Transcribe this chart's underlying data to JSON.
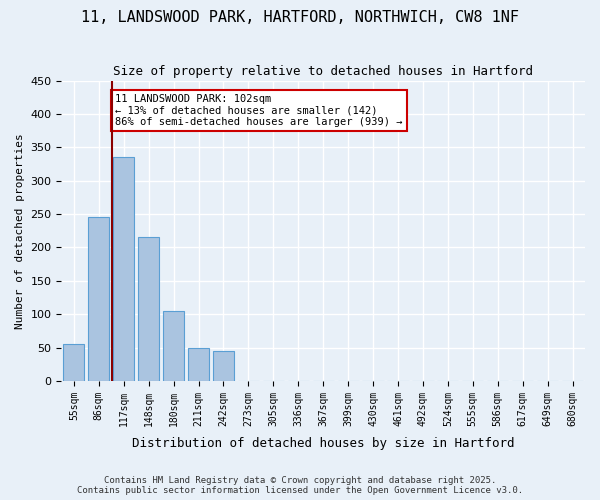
{
  "title": "11, LANDSWOOD PARK, HARTFORD, NORTHWICH, CW8 1NF",
  "subtitle": "Size of property relative to detached houses in Hartford",
  "xlabel": "Distribution of detached houses by size in Hartford",
  "ylabel": "Number of detached properties",
  "categories": [
    "55sqm",
    "86sqm",
    "117sqm",
    "148sqm",
    "180sqm",
    "211sqm",
    "242sqm",
    "273sqm",
    "305sqm",
    "336sqm",
    "367sqm",
    "399sqm",
    "430sqm",
    "461sqm",
    "492sqm",
    "524sqm",
    "555sqm",
    "586sqm",
    "617sqm",
    "649sqm",
    "680sqm"
  ],
  "values": [
    55,
    245,
    335,
    215,
    105,
    50,
    45,
    0,
    0,
    0,
    0,
    0,
    0,
    0,
    0,
    0,
    0,
    0,
    0,
    0,
    0
  ],
  "bar_color": "#aac4e0",
  "bar_edge_color": "#5a9fd4",
  "ylim": [
    0,
    450
  ],
  "yticks": [
    0,
    50,
    100,
    150,
    200,
    250,
    300,
    350,
    400,
    450
  ],
  "vline_x_index": 0.72,
  "vline_color": "#8b0000",
  "annotation_text": "11 LANDSWOOD PARK: 102sqm\n← 13% of detached houses are smaller (142)\n86% of semi-detached houses are larger (939) →",
  "annotation_box_color": "#ffffff",
  "annotation_box_edge": "#cc0000",
  "background_color": "#e8f0f8",
  "grid_color": "#ffffff",
  "footer_line1": "Contains HM Land Registry data © Crown copyright and database right 2025.",
  "footer_line2": "Contains public sector information licensed under the Open Government Licence v3.0."
}
